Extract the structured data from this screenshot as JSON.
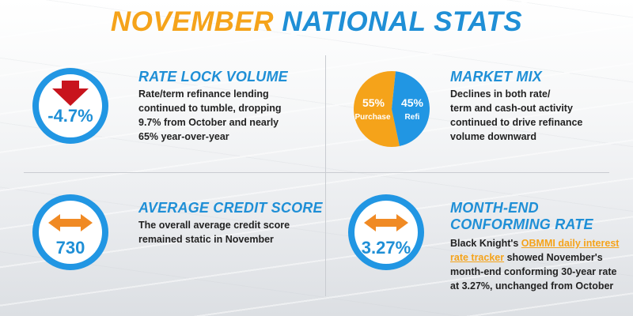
{
  "title": {
    "highlight": "NOVEMBER",
    "rest": "NATIONAL STATS"
  },
  "rate_lock": {
    "value": "-4.7%",
    "title": "RATE LOCK VOLUME",
    "desc": [
      "Rate/term refinance lending",
      "continued to tumble, dropping",
      "9.7% from October and nearly",
      "65% year-over-year"
    ]
  },
  "market_mix": {
    "title": "MARKET MIX",
    "purchase_pct": "55%",
    "purchase_label": "Purchase",
    "refi_pct": "45%",
    "refi_label": "Refi",
    "purchase_share": 0.55,
    "desc": [
      "Declines in both rate/",
      "term and cash-out activity",
      "continued to drive refinance",
      "volume downward"
    ]
  },
  "credit_score": {
    "value": "730",
    "title": "AVERAGE CREDIT SCORE",
    "desc": [
      "The overall average credit score",
      "remained static in November"
    ]
  },
  "conforming_rate": {
    "value": "3.27%",
    "title_lines": [
      "MONTH-END",
      "CONFORMING RATE"
    ],
    "desc_prefix": "Black Knight's ",
    "link_line1": "OBMMI daily interest",
    "link_line2": "rate tracker",
    "desc_line2_rest": " showed November's",
    "desc_rest": [
      "month-end conforming 30-year rate",
      "at 3.27%, unchanged from October"
    ]
  },
  "colors": {
    "orange": "#f5a31a",
    "blue": "#1f8fd6",
    "circle_blue": "#2196e3",
    "arrow_red": "#c8141d",
    "arrow_orange": "#f08a24"
  },
  "icons": [
    "arrow-down-icon",
    "double-arrow-icon",
    "pie-chart"
  ]
}
